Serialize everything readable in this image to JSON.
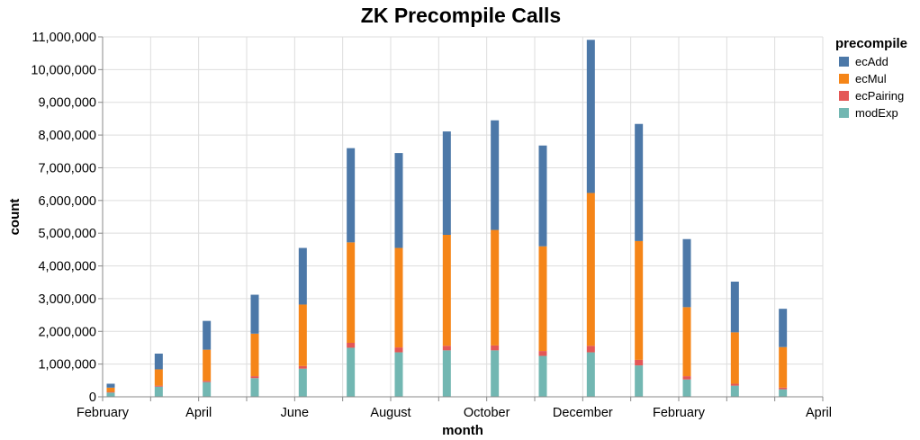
{
  "chart_data": {
    "type": "bar",
    "stacked": true,
    "title": "ZK Precompile Calls",
    "xlabel": "month",
    "ylabel": "count",
    "ylim": [
      0,
      11000000
    ],
    "yticks": [
      0,
      1000000,
      2000000,
      3000000,
      4000000,
      5000000,
      6000000,
      7000000,
      8000000,
      9000000,
      10000000,
      11000000
    ],
    "ytick_labels": [
      "0",
      "1,000,000",
      "2,000,000",
      "3,000,000",
      "4,000,000",
      "5,000,000",
      "6,000,000",
      "7,000,000",
      "8,000,000",
      "9,000,000",
      "10,000,000",
      "11,000,000"
    ],
    "xtick_labels": [
      "February",
      "April",
      "June",
      "August",
      "October",
      "December",
      "February",
      "April"
    ],
    "categories": [
      "Feb Y1",
      "Mar Y1",
      "Apr Y1",
      "May Y1",
      "Jun Y1",
      "Jul Y1",
      "Aug Y1",
      "Sep Y1",
      "Oct Y1",
      "Nov Y1",
      "Dec Y1",
      "Jan Y2",
      "Feb Y2",
      "Mar Y2",
      "Apr Y2"
    ],
    "legend": {
      "title": "precompile",
      "position": "right"
    },
    "series": [
      {
        "name": "modExp",
        "color": "#72b7b2",
        "values": [
          130000,
          310000,
          450000,
          570000,
          860000,
          1500000,
          1360000,
          1420000,
          1420000,
          1250000,
          1360000,
          960000,
          530000,
          340000,
          230000
        ]
      },
      {
        "name": "ecPairing",
        "color": "#e45756",
        "values": [
          20000,
          30000,
          40000,
          60000,
          80000,
          150000,
          150000,
          140000,
          150000,
          150000,
          200000,
          170000,
          100000,
          60000,
          50000
        ]
      },
      {
        "name": "ecMul",
        "color": "#f58518",
        "values": [
          130000,
          500000,
          950000,
          1300000,
          1880000,
          3070000,
          3040000,
          3390000,
          3530000,
          3200000,
          4670000,
          3630000,
          2110000,
          1570000,
          1240000
        ]
      },
      {
        "name": "ecAdd",
        "color": "#4c78a8",
        "values": [
          120000,
          480000,
          880000,
          1190000,
          1730000,
          2880000,
          2900000,
          3160000,
          3350000,
          3080000,
          4680000,
          3580000,
          2080000,
          1550000,
          1170000
        ]
      }
    ],
    "legend_order": [
      "ecAdd",
      "ecMul",
      "ecPairing",
      "modExp"
    ]
  }
}
